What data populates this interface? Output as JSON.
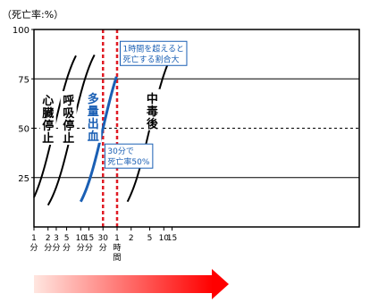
{
  "chart_data": {
    "type": "line",
    "title": "（死亡率:%）",
    "x_scale": "log",
    "y_ticks": [
      25,
      50,
      75,
      100
    ],
    "ylim": [
      0,
      100
    ],
    "x_ticks": [
      {
        "minutes": 1,
        "lines": [
          "1",
          "分"
        ]
      },
      {
        "minutes": 2,
        "lines": [
          "2",
          "分"
        ]
      },
      {
        "minutes": 3,
        "lines": [
          "3",
          "分"
        ]
      },
      {
        "minutes": 5,
        "lines": [
          "5",
          "分"
        ]
      },
      {
        "minutes": 10,
        "lines": [
          "10",
          "分"
        ]
      },
      {
        "minutes": 15,
        "lines": [
          "15",
          "分"
        ]
      },
      {
        "minutes": 30,
        "lines": [
          "30",
          "分"
        ]
      },
      {
        "minutes": 60,
        "lines": [
          "1",
          "時",
          "間"
        ]
      },
      {
        "minutes": 120,
        "lines": [
          "2"
        ]
      },
      {
        "minutes": 300,
        "lines": [
          "5"
        ]
      },
      {
        "minutes": 600,
        "lines": [
          "10"
        ]
      },
      {
        "minutes": 900,
        "lines": [
          "15"
        ]
      }
    ],
    "series": [
      {
        "name": "心臓停止",
        "color": "#000000",
        "midpoint_minutes": 2.7,
        "start_minutes": 1,
        "end_minutes": 8,
        "label_at_minutes": 2.0,
        "label_at_y": 62
      },
      {
        "name": "呼吸停止",
        "color": "#000000",
        "midpoint_minutes": 6.6,
        "start_minutes": 2,
        "end_minutes": 20,
        "label_at_minutes": 5.5,
        "label_at_y": 62
      },
      {
        "name": "多量出血",
        "color": "#1a5fb4",
        "midpoint_minutes": 30,
        "start_minutes": 10,
        "end_minutes": 60,
        "label_at_minutes": 18.5,
        "label_at_y": 63
      },
      {
        "name": "中毒後",
        "color": "#000000",
        "midpoint_minutes": 300,
        "start_minutes": 100,
        "end_minutes": 1000,
        "label_at_minutes": 340,
        "label_at_y": 63
      }
    ],
    "reference_lines": [
      {
        "minutes": 30,
        "color": "#e01b24"
      },
      {
        "minutes": 60,
        "color": "#e01b24"
      }
    ],
    "annotations": [
      {
        "lines": [
          "1時間を超えると",
          "死亡する割合大"
        ],
        "color": "#1a5fb4",
        "at_minutes": 70,
        "at_y": 94
      },
      {
        "lines": [
          "30分で",
          "死亡率50%"
        ],
        "color": "#1a5fb4",
        "at_minutes": 33,
        "at_y": 42
      }
    ],
    "arrow": {
      "color_from": "#ffe6e0",
      "color_to": "#ff0000",
      "direction": "right"
    }
  }
}
